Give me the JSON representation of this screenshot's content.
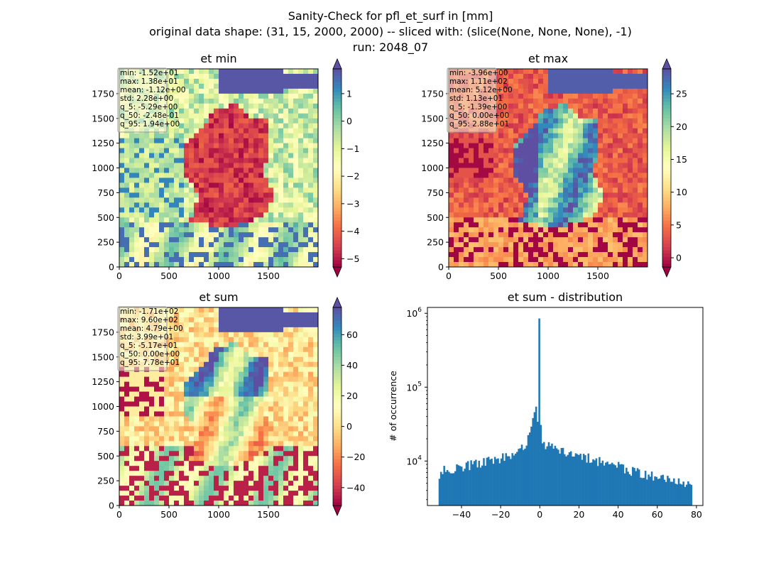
{
  "figure": {
    "title_lines": [
      "Sanity-Check for pfl_et_surf in [mm]",
      "original data shape: (31, 15, 2000, 2000) -- sliced with: (slice(None, None, None), -1)",
      "run: 2048_07"
    ]
  },
  "colors": {
    "hist_bar": "#1f77b4",
    "spectral": [
      "#9e0142",
      "#d53e4f",
      "#f46d43",
      "#fdae61",
      "#fee08b",
      "#ffffbf",
      "#e6f598",
      "#abdda4",
      "#66c2a5",
      "#3288bd",
      "#5e4fa2"
    ]
  },
  "chart_data": [
    {
      "type": "heatmap",
      "title": "et min",
      "colormap": "Spectral",
      "colorbar_ticks": [
        "1",
        "0",
        "−1",
        "−2",
        "−3",
        "−4",
        "−5"
      ],
      "colorbar_values": [
        1,
        0,
        -1,
        -2,
        -3,
        -4,
        -5
      ],
      "color_range": [
        -5.3,
        1.9
      ],
      "colorbar_extend": "both",
      "x_ticks": [
        "0",
        "500",
        "1000",
        "1500"
      ],
      "y_ticks": [
        "0",
        "250",
        "500",
        "750",
        "1000",
        "1250",
        "1500",
        "1750"
      ],
      "xlim": [
        0,
        2000
      ],
      "ylim": [
        0,
        2000
      ],
      "stats": [
        "min: -1.52e+01",
        "max: 1.38e+01",
        "mean: -1.12e+00",
        "std: 2.28e+00",
        "q_5: -5.29e+00",
        "q_50: -2.48e-01",
        "q_95: 1.94e+00"
      ],
      "stats_placement": "top-left"
    },
    {
      "type": "heatmap",
      "title": "et max",
      "colormap": "Spectral",
      "colorbar_ticks": [
        "25",
        "20",
        "15",
        "10",
        "5",
        "0"
      ],
      "colorbar_values": [
        25,
        20,
        15,
        10,
        5,
        0
      ],
      "color_range": [
        -1.4,
        28.8
      ],
      "colorbar_extend": "both",
      "x_ticks": [
        "0",
        "500",
        "1000",
        "1500"
      ],
      "y_ticks": [
        "0",
        "250",
        "500",
        "750",
        "1000",
        "1250",
        "1500",
        "1750"
      ],
      "xlim": [
        0,
        2000
      ],
      "ylim": [
        0,
        2000
      ],
      "stats": [
        "min: -3.96e+00",
        "max: 1.11e+02",
        "mean: 5.12e+00",
        "std: 1.13e+01",
        "q_5: -1.39e+00",
        "q_50: 0.00e+00",
        "q_95: 2.88e+01"
      ],
      "stats_placement": "top-left"
    },
    {
      "type": "heatmap",
      "title": "et sum",
      "colormap": "Spectral",
      "colorbar_ticks": [
        "60",
        "40",
        "20",
        "0",
        "−20",
        "−40"
      ],
      "colorbar_values": [
        60,
        40,
        20,
        0,
        -20,
        -40
      ],
      "color_range": [
        -51.7,
        77.8
      ],
      "colorbar_extend": "both",
      "x_ticks": [
        "0",
        "500",
        "1000",
        "1500"
      ],
      "y_ticks": [
        "0",
        "250",
        "500",
        "750",
        "1000",
        "1250",
        "1500",
        "1750"
      ],
      "xlim": [
        0,
        2000
      ],
      "ylim": [
        0,
        2000
      ],
      "stats": [
        "min: -1.71e+02",
        "max: 9.60e+02",
        "mean: 4.79e+00",
        "std: 3.99e+01",
        "q_5: -5.17e+01",
        "q_50: 0.00e+00",
        "q_95: 7.78e+01"
      ],
      "stats_placement": "top-left"
    },
    {
      "type": "bar",
      "title": "et sum - distribution",
      "ylabel": "# of occurrence",
      "xlabel": "",
      "y_scale": "log",
      "xlim": [
        -57.4,
        83.3
      ],
      "ylim": [
        2500,
        1200000
      ],
      "x_ticks": [
        "−40",
        "−20",
        "0",
        "20",
        "40",
        "60",
        "80"
      ],
      "x_tick_values": [
        -40,
        -20,
        0,
        20,
        40,
        60,
        80
      ],
      "y_ticks": [
        {
          "base": "10",
          "exp": "4",
          "value": 10000
        },
        {
          "base": "10",
          "exp": "5",
          "value": 100000
        },
        {
          "base": "10",
          "exp": "6",
          "value": 1000000
        }
      ],
      "bin_range": [
        -51.7,
        77.8
      ],
      "anchors": [
        [
          -51.7,
          6200
        ],
        [
          -50,
          7500
        ],
        [
          -45,
          7800
        ],
        [
          -40,
          8200
        ],
        [
          -35,
          9000
        ],
        [
          -30,
          9500
        ],
        [
          -25,
          10200
        ],
        [
          -20,
          11000
        ],
        [
          -15,
          12000
        ],
        [
          -10,
          14000
        ],
        [
          -7,
          17000
        ],
        [
          -5,
          23000
        ],
        [
          -3,
          45000
        ],
        [
          -2,
          65000
        ],
        [
          -1,
          30000
        ],
        [
          -0.3,
          850000
        ],
        [
          0.3,
          32000
        ],
        [
          1,
          18000
        ],
        [
          3,
          16500
        ],
        [
          5,
          15500
        ],
        [
          10,
          14000
        ],
        [
          15,
          13000
        ],
        [
          20,
          12000
        ],
        [
          25,
          11000
        ],
        [
          30,
          10000
        ],
        [
          35,
          9200
        ],
        [
          40,
          8500
        ],
        [
          45,
          7500
        ],
        [
          50,
          7000
        ],
        [
          55,
          6500
        ],
        [
          60,
          6200
        ],
        [
          65,
          5800
        ],
        [
          70,
          5400
        ],
        [
          75,
          5000
        ],
        [
          77.8,
          4500
        ]
      ]
    }
  ]
}
